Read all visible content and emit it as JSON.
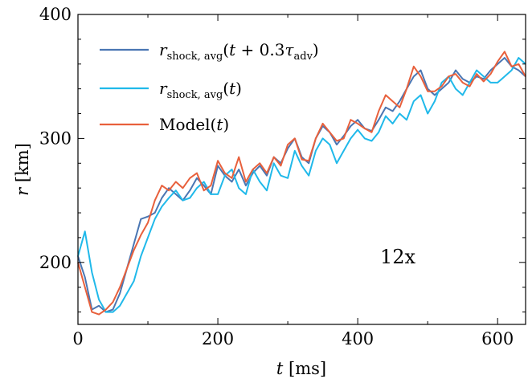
{
  "chart_data": {
    "type": "line",
    "xlabel": "t [ms]",
    "ylabel": "r [km]",
    "xlim": [
      0,
      640
    ],
    "ylim": [
      150,
      400
    ],
    "xticks": [
      0,
      200,
      400,
      600
    ],
    "yticks": [
      200,
      300,
      400
    ],
    "legend_placement": "top-left",
    "annotation": "12x",
    "grid": false,
    "series": [
      {
        "name": "r_shock,avg(t + 0.3τ_adv)",
        "color": "#4a76b3",
        "x": [
          0,
          10,
          20,
          30,
          40,
          50,
          60,
          70,
          80,
          90,
          100,
          110,
          120,
          130,
          140,
          150,
          160,
          170,
          180,
          190,
          200,
          210,
          220,
          230,
          240,
          250,
          260,
          270,
          280,
          290,
          300,
          310,
          320,
          330,
          340,
          350,
          360,
          370,
          380,
          390,
          400,
          410,
          420,
          430,
          440,
          450,
          460,
          470,
          480,
          490,
          500,
          510,
          520,
          530,
          540,
          550,
          560,
          570,
          580,
          590,
          600,
          610,
          620,
          630,
          640
        ],
        "y": [
          205,
          188,
          162,
          165,
          160,
          162,
          175,
          195,
          215,
          235,
          237,
          240,
          252,
          260,
          255,
          250,
          258,
          268,
          262,
          255,
          278,
          270,
          265,
          275,
          262,
          272,
          278,
          270,
          285,
          280,
          292,
          300,
          285,
          280,
          300,
          310,
          305,
          295,
          302,
          310,
          315,
          308,
          306,
          315,
          325,
          322,
          330,
          340,
          350,
          355,
          340,
          335,
          340,
          345,
          355,
          348,
          345,
          350,
          348,
          355,
          360,
          365,
          358,
          355,
          350
        ]
      },
      {
        "name": "r_shock,avg(t)",
        "color": "#20b9ea",
        "x": [
          0,
          10,
          20,
          30,
          40,
          50,
          60,
          70,
          80,
          90,
          100,
          110,
          120,
          130,
          140,
          150,
          160,
          170,
          180,
          190,
          200,
          210,
          220,
          230,
          240,
          250,
          260,
          270,
          280,
          290,
          300,
          310,
          320,
          330,
          340,
          350,
          360,
          370,
          380,
          390,
          400,
          410,
          420,
          430,
          440,
          450,
          460,
          470,
          480,
          490,
          500,
          510,
          520,
          530,
          540,
          550,
          560,
          570,
          580,
          590,
          600,
          610,
          620,
          630,
          640
        ],
        "y": [
          205,
          225,
          192,
          170,
          160,
          160,
          165,
          175,
          185,
          205,
          220,
          235,
          245,
          252,
          258,
          250,
          252,
          260,
          265,
          255,
          255,
          270,
          275,
          260,
          255,
          275,
          265,
          258,
          280,
          270,
          268,
          290,
          278,
          270,
          290,
          300,
          295,
          280,
          290,
          300,
          307,
          300,
          298,
          305,
          318,
          312,
          320,
          315,
          330,
          335,
          320,
          330,
          345,
          350,
          340,
          335,
          345,
          355,
          350,
          345,
          345,
          350,
          355,
          365,
          360
        ]
      },
      {
        "name": "Model(t)",
        "color": "#e8603c",
        "x": [
          0,
          10,
          20,
          30,
          40,
          50,
          60,
          70,
          80,
          90,
          100,
          110,
          120,
          130,
          140,
          150,
          160,
          170,
          180,
          190,
          200,
          210,
          220,
          230,
          240,
          250,
          260,
          270,
          280,
          290,
          300,
          310,
          320,
          330,
          340,
          350,
          360,
          370,
          380,
          390,
          400,
          410,
          420,
          430,
          440,
          450,
          460,
          470,
          480,
          490,
          500,
          510,
          520,
          530,
          540,
          550,
          560,
          570,
          580,
          590,
          600,
          610,
          620,
          630,
          640
        ],
        "y": [
          200,
          180,
          160,
          158,
          162,
          168,
          180,
          195,
          210,
          222,
          232,
          250,
          262,
          258,
          265,
          260,
          268,
          272,
          258,
          262,
          282,
          272,
          268,
          285,
          265,
          275,
          280,
          272,
          285,
          278,
          295,
          300,
          283,
          282,
          300,
          312,
          305,
          298,
          300,
          315,
          312,
          308,
          305,
          322,
          335,
          330,
          325,
          340,
          358,
          350,
          338,
          338,
          342,
          350,
          352,
          345,
          342,
          352,
          346,
          352,
          362,
          370,
          358,
          360,
          350
        ]
      }
    ]
  }
}
